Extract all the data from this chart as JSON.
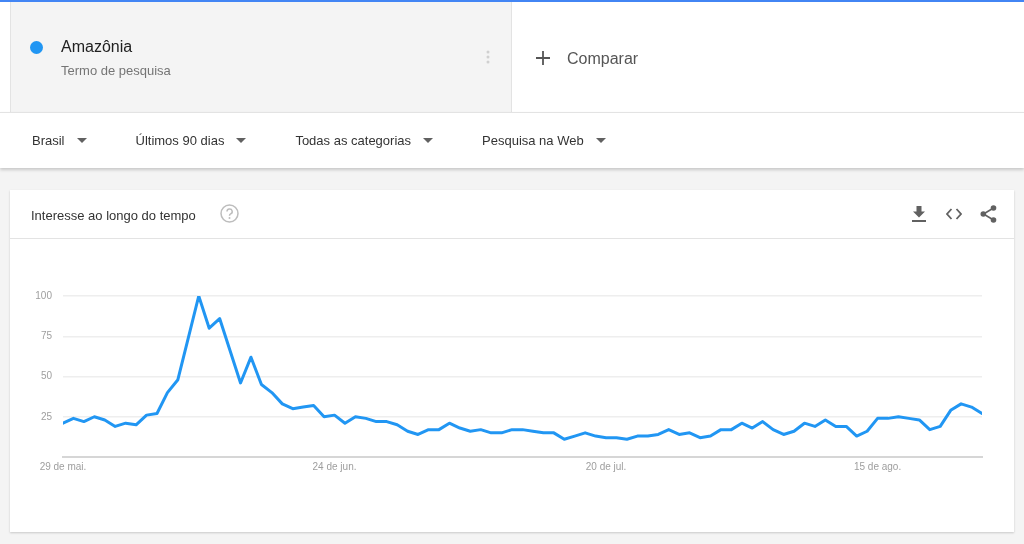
{
  "chart_data": {
    "type": "line",
    "title": "Interesse ao longo do tempo",
    "annotations": [
      "Termo de pesquisa",
      "Comparar",
      "Brasil",
      "Últimos 90 dias",
      "Todas as categorias",
      "Pesquisa na Web"
    ],
    "x": [
      "--05-29",
      "--05-30",
      "--05-31",
      "--06-01",
      "--06-02",
      "--06-03",
      "--06-04",
      "--06-05",
      "--06-06",
      "--06-07",
      "--06-08",
      "--06-09",
      "--06-10",
      "--06-11",
      "--06-12",
      "--06-13",
      "--06-14",
      "--06-15",
      "--06-16",
      "--06-17",
      "--06-18",
      "--06-19",
      "--06-20",
      "--06-21",
      "--06-22",
      "--06-23",
      "--06-24",
      "--06-25",
      "--06-26",
      "--06-27",
      "--06-28",
      "--06-29",
      "--06-30",
      "--07-01",
      "--07-02",
      "--07-03",
      "--07-04",
      "--07-05",
      "--07-06",
      "--07-07",
      "--07-08",
      "--07-09",
      "--07-10",
      "--07-11",
      "--07-12",
      "--07-13",
      "--07-14",
      "--07-15",
      "--07-16",
      "--07-17",
      "--07-18",
      "--07-19",
      "--07-20",
      "--07-21",
      "--07-22",
      "--07-23",
      "--07-24",
      "--07-25",
      "--07-26",
      "--07-27",
      "--07-28",
      "--07-29",
      "--07-30",
      "--07-31",
      "--08-01",
      "--08-02",
      "--08-03",
      "--08-04",
      "--08-05",
      "--08-06",
      "--08-07",
      "--08-08",
      "--08-09",
      "--08-10",
      "--08-11",
      "--08-12",
      "--08-13",
      "--08-14",
      "--08-15",
      "--08-16",
      "--08-17",
      "--08-18",
      "--08-19",
      "--08-20",
      "--08-21",
      "--08-22",
      "--08-23",
      "--08-24",
      "--08-25"
    ],
    "series": [
      {
        "name": "Amazônia",
        "color": "#2196f3",
        "values": [
          21,
          24,
          22,
          25,
          23,
          19,
          21,
          20,
          26,
          27,
          40,
          48,
          74,
          100,
          80,
          86,
          66,
          46,
          62,
          45,
          40,
          33,
          30,
          31,
          32,
          25,
          26,
          21,
          25,
          24,
          22,
          22,
          20,
          16,
          14,
          17,
          17,
          21,
          18,
          16,
          17,
          15,
          15,
          17,
          17,
          16,
          15,
          15,
          11,
          13,
          15,
          13,
          12,
          12,
          11,
          13,
          13,
          14,
          17,
          14,
          15,
          12,
          13,
          17,
          17,
          21,
          18,
          22,
          17,
          14,
          16,
          21,
          19,
          23,
          19,
          19,
          13,
          16,
          24,
          24,
          25,
          24,
          23,
          17,
          19,
          29,
          33,
          31,
          27
        ]
      }
    ],
    "xlim": [
      "--05-29",
      "--08-25"
    ],
    "xticks": [
      {
        "value": "--05-29",
        "label": "29 de mai."
      },
      {
        "value": "--06-24",
        "label": "24 de jun."
      },
      {
        "value": "--07-20",
        "label": "20 de jul."
      },
      {
        "value": "--08-15",
        "label": "15 de ago."
      }
    ],
    "ylim": [
      0,
      100
    ],
    "yticks": [
      25,
      50,
      75,
      100
    ],
    "grid": "y",
    "legend": "top left"
  }
}
